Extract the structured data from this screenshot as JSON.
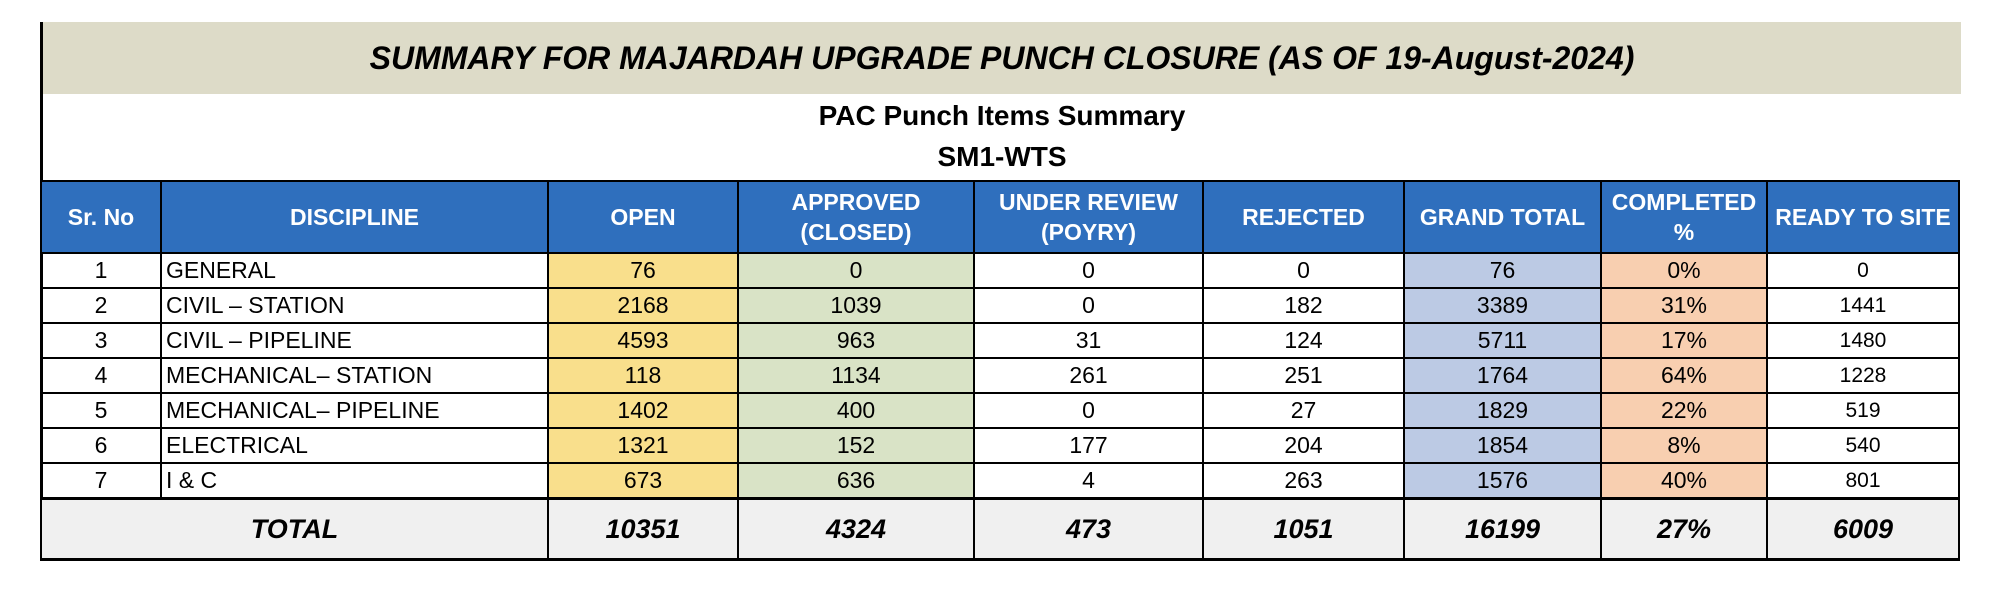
{
  "title": "SUMMARY FOR MAJARDAH UPGRADE PUNCH CLOSURE (AS OF 19-August-2024)",
  "subtitle": "PAC Punch Items Summary",
  "subtitle2": "SM1-WTS",
  "headers": {
    "sr": "Sr. No",
    "discipline": "DISCIPLINE",
    "open": "OPEN",
    "approved": "APPROVED (CLOSED)",
    "under_review": "UNDER REVIEW (POYRY)",
    "rejected": "REJECTED",
    "grand_total": "GRAND TOTAL",
    "completed": "COMPLETED %",
    "ready": "READY TO SITE"
  },
  "rows": [
    {
      "sr": "1",
      "discipline": "GENERAL",
      "open": "76",
      "approved": "0",
      "under_review": "0",
      "rejected": "0",
      "grand_total": "76",
      "completed": "0%",
      "ready": "0"
    },
    {
      "sr": "2",
      "discipline": "CIVIL – STATION",
      "open": "2168",
      "approved": "1039",
      "under_review": "0",
      "rejected": "182",
      "grand_total": "3389",
      "completed": "31%",
      "ready": "1441"
    },
    {
      "sr": "3",
      "discipline": "CIVIL – PIPELINE",
      "open": "4593",
      "approved": "963",
      "under_review": "31",
      "rejected": "124",
      "grand_total": "5711",
      "completed": "17%",
      "ready": "1480"
    },
    {
      "sr": "4",
      "discipline": "MECHANICAL– STATION",
      "open": "118",
      "approved": "1134",
      "under_review": "261",
      "rejected": "251",
      "grand_total": "1764",
      "completed": "64%",
      "ready": "1228"
    },
    {
      "sr": "5",
      "discipline": "MECHANICAL– PIPELINE",
      "open": "1402",
      "approved": "400",
      "under_review": "0",
      "rejected": "27",
      "grand_total": "1829",
      "completed": "22%",
      "ready": "519"
    },
    {
      "sr": "6",
      "discipline": "ELECTRICAL",
      "open": "1321",
      "approved": "152",
      "under_review": "177",
      "rejected": "204",
      "grand_total": "1854",
      "completed": "8%",
      "ready": "540"
    },
    {
      "sr": "7",
      "discipline": "I & C",
      "open": "673",
      "approved": "636",
      "under_review": "4",
      "rejected": "263",
      "grand_total": "1576",
      "completed": "40%",
      "ready": "801"
    }
  ],
  "total": {
    "label": "TOTAL",
    "open": "10351",
    "approved": "4324",
    "under_review": "473",
    "rejected": "1051",
    "grand_total": "16199",
    "completed": "27%",
    "ready": "6009"
  }
}
